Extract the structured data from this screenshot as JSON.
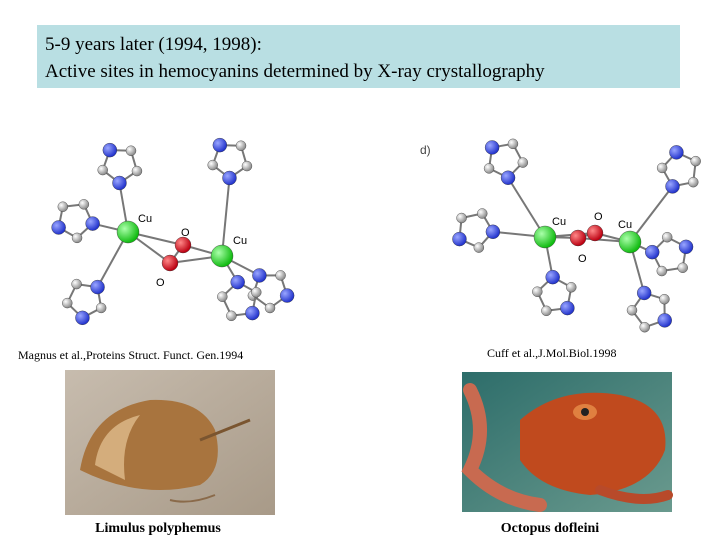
{
  "title": {
    "line1": "5-9 years later (1994, 1998):",
    "line2": "Active sites in hemocyanins determined by X-ray crystallography"
  },
  "left_structure": {
    "labels": [
      "Cu",
      "O",
      "Cu",
      "O"
    ],
    "citation": "Magnus et al.,Proteins Struct. Funct. Gen.1994"
  },
  "right_structure": {
    "panel": "d)",
    "labels": [
      "Cu",
      "O",
      "Cu",
      "O"
    ],
    "citation": "Cuff et al.,J.Mol.Biol.1998"
  },
  "photos": [
    {
      "caption": "Limulus polyphemus"
    },
    {
      "caption": "Octopus dofleini"
    }
  ]
}
